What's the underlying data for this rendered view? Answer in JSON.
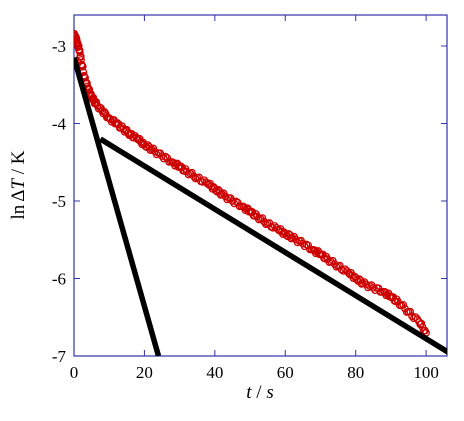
{
  "chart_data": {
    "type": "scatter",
    "xlabel": {
      "var": "t",
      "sep": " / ",
      "unit": "s"
    },
    "ylabel": {
      "prefix": "ln",
      "delta": "Δ",
      "var": "T",
      "sep": " / ",
      "unit": "K"
    },
    "xlim": [
      0,
      100
    ],
    "ylim": [
      -7,
      -2.6
    ],
    "x_ticks": [
      0,
      20,
      40,
      60,
      80,
      100
    ],
    "y_ticks": [
      -7,
      -6,
      -5,
      -4,
      -3
    ],
    "grid": false,
    "colors": {
      "data": "#cc0000",
      "fit": "#000000",
      "frame": "#3333aa"
    },
    "series": [
      {
        "kind": "points",
        "x": [
          0,
          0.5,
          1,
          1.5,
          2,
          3,
          4,
          5,
          6,
          8,
          10,
          12,
          14,
          16,
          18,
          20,
          22,
          25,
          28,
          30,
          32,
          35,
          38,
          40,
          42,
          45,
          48,
          50,
          52,
          55,
          58,
          60,
          62,
          65,
          68,
          70,
          72,
          75,
          78,
          80,
          82,
          85,
          88,
          90,
          92,
          95,
          98,
          100
        ],
        "y": [
          -2.86,
          -2.9,
          -2.96,
          -3.05,
          -3.18,
          -3.4,
          -3.55,
          -3.65,
          -3.73,
          -3.84,
          -3.93,
          -4.0,
          -4.07,
          -4.14,
          -4.2,
          -4.27,
          -4.33,
          -4.42,
          -4.5,
          -4.56,
          -4.62,
          -4.7,
          -4.78,
          -4.84,
          -4.91,
          -5.0,
          -5.07,
          -5.14,
          -5.2,
          -5.29,
          -5.37,
          -5.42,
          -5.47,
          -5.55,
          -5.63,
          -5.69,
          -5.75,
          -5.84,
          -5.93,
          -5.99,
          -6.06,
          -6.12,
          -6.17,
          -6.24,
          -6.3,
          -6.43,
          -6.56,
          -6.7
        ]
      },
      {
        "kind": "line",
        "x": [
          0,
          24
        ],
        "y": [
          -3.15,
          -7.0
        ]
      },
      {
        "kind": "line",
        "x": [
          7.5,
          108
        ],
        "y": [
          -4.2,
          -7.0
        ]
      }
    ]
  }
}
